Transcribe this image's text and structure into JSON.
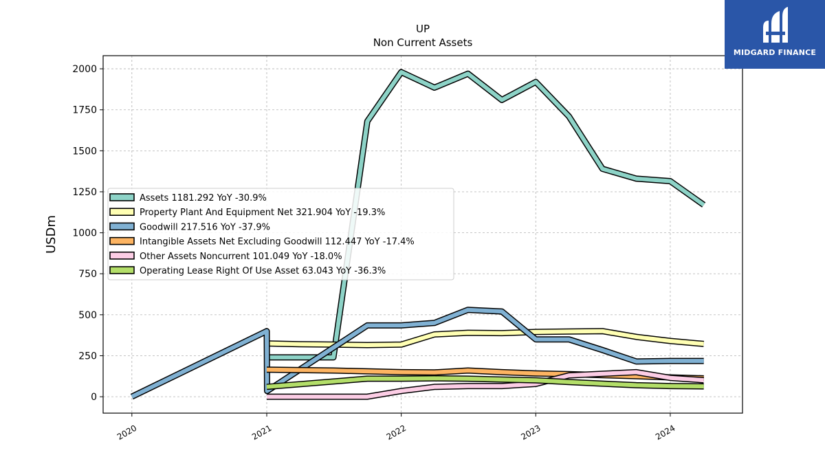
{
  "brand": {
    "name": "MIDGARD FINANCE",
    "color": "#2a56a8"
  },
  "chart_data": {
    "type": "line",
    "title": "UP",
    "subtitle": "Non Current  Assets",
    "ylabel": "USDm",
    "xlabel": "",
    "xlim": [
      "2019-10-15",
      "2024-07-15"
    ],
    "ylim": [
      -100,
      2080
    ],
    "yticks": [
      0,
      250,
      500,
      750,
      1000,
      1250,
      1500,
      1750,
      2000
    ],
    "xticks": [
      {
        "date": "2020-01-01",
        "label": "2020"
      },
      {
        "date": "2021-01-01",
        "label": "2021"
      },
      {
        "date": "2022-01-01",
        "label": "2022"
      },
      {
        "date": "2023-01-01",
        "label": "2023"
      },
      {
        "date": "2024-01-01",
        "label": "2024"
      }
    ],
    "grid": true,
    "legend_position": "center-left",
    "series": [
      {
        "name": "Assets",
        "legend": "Assets  1181.292 YoY -30.9%",
        "color": "#8dd3c7",
        "points": [
          [
            "2021-01-01",
            240
          ],
          [
            "2021-07-01",
            240
          ],
          [
            "2021-10-01",
            1680
          ],
          [
            "2022-01-01",
            1980
          ],
          [
            "2022-04-01",
            1885
          ],
          [
            "2022-07-01",
            1970
          ],
          [
            "2022-10-01",
            1810
          ],
          [
            "2023-01-01",
            1920
          ],
          [
            "2023-04-01",
            1710
          ],
          [
            "2023-07-01",
            1390
          ],
          [
            "2023-10-01",
            1330
          ],
          [
            "2024-01-01",
            1315
          ],
          [
            "2024-04-01",
            1170
          ]
        ]
      },
      {
        "name": "Property Plant And Equipment Net",
        "legend": "Property Plant And Equipment Net  321.904 YoY -19.3%",
        "color": "#ffffb3",
        "points": [
          [
            "2021-01-01",
            325
          ],
          [
            "2021-04-01",
            320
          ],
          [
            "2021-07-01",
            318
          ],
          [
            "2021-10-01",
            315
          ],
          [
            "2022-01-01",
            318
          ],
          [
            "2022-04-01",
            380
          ],
          [
            "2022-07-01",
            390
          ],
          [
            "2022-10-01",
            388
          ],
          [
            "2023-01-01",
            395
          ],
          [
            "2023-04-01",
            398
          ],
          [
            "2023-07-01",
            400
          ],
          [
            "2023-10-01",
            365
          ],
          [
            "2024-01-01",
            340
          ],
          [
            "2024-04-01",
            322
          ]
        ]
      },
      {
        "name": "Goodwill",
        "legend": "Goodwill  217.516 YoY -37.9%",
        "color": "#80b1d3",
        "points": [
          [
            "2020-01-01",
            0
          ],
          [
            "2021-01-01",
            400
          ],
          [
            "2021-01-02",
            35
          ],
          [
            "2021-10-01",
            435
          ],
          [
            "2022-01-01",
            435
          ],
          [
            "2022-04-01",
            450
          ],
          [
            "2022-07-01",
            530
          ],
          [
            "2022-10-01",
            520
          ],
          [
            "2023-01-01",
            350
          ],
          [
            "2023-04-01",
            350
          ],
          [
            "2023-07-01",
            285
          ],
          [
            "2023-10-01",
            215
          ],
          [
            "2024-01-01",
            218
          ],
          [
            "2024-04-01",
            218
          ]
        ]
      },
      {
        "name": "Intangible Assets Net Excluding Goodwill",
        "legend": "Intangible Assets Net Excluding Goodwill  112.447 YoY -17.4%",
        "color": "#fdb462",
        "points": [
          [
            "2021-01-01",
            165
          ],
          [
            "2021-07-01",
            160
          ],
          [
            "2022-01-01",
            150
          ],
          [
            "2022-04-01",
            148
          ],
          [
            "2022-07-01",
            160
          ],
          [
            "2022-10-01",
            150
          ],
          [
            "2023-01-01",
            142
          ],
          [
            "2023-04-01",
            138
          ],
          [
            "2023-07-01",
            132
          ],
          [
            "2023-10-01",
            125
          ],
          [
            "2024-01-01",
            118
          ],
          [
            "2024-04-01",
            112
          ]
        ]
      },
      {
        "name": "Other Assets Noncurrent",
        "legend": "Other Assets Noncurrent  101.049 YoY -18.0%",
        "color": "#fccde5",
        "points": [
          [
            "2021-01-01",
            0
          ],
          [
            "2021-10-01",
            0
          ],
          [
            "2022-01-01",
            35
          ],
          [
            "2022-04-01",
            60
          ],
          [
            "2022-07-01",
            65
          ],
          [
            "2022-10-01",
            65
          ],
          [
            "2023-01-01",
            78
          ],
          [
            "2023-04-01",
            130
          ],
          [
            "2023-07-01",
            140
          ],
          [
            "2023-10-01",
            150
          ],
          [
            "2024-01-01",
            115
          ],
          [
            "2024-04-01",
            101
          ]
        ]
      },
      {
        "name": "Operating Lease Right Of Use Asset",
        "legend": "Operating Lease Right Of Use Asset  63.043 YoY -36.3%",
        "color": "#b3de69",
        "points": [
          [
            "2021-01-01",
            60
          ],
          [
            "2021-10-01",
            110
          ],
          [
            "2022-01-01",
            110
          ],
          [
            "2022-04-01",
            112
          ],
          [
            "2022-07-01",
            110
          ],
          [
            "2022-10-01",
            105
          ],
          [
            "2023-01-01",
            100
          ],
          [
            "2023-04-01",
            90
          ],
          [
            "2023-07-01",
            80
          ],
          [
            "2023-10-01",
            70
          ],
          [
            "2024-01-01",
            65
          ],
          [
            "2024-04-01",
            63
          ]
        ]
      }
    ]
  }
}
